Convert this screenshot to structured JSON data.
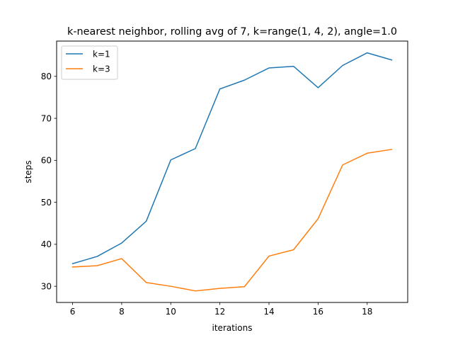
{
  "chart_data": {
    "type": "line",
    "title": "k-nearest neighbor, rolling avg of 7, k=range(1, 4, 2), angle=1.0",
    "xlabel": "iterations",
    "ylabel": "steps",
    "xlim": [
      5.35,
      19.65
    ],
    "ylim": [
      26.15,
      88.4
    ],
    "xticks": [
      6,
      8,
      10,
      12,
      14,
      16,
      18
    ],
    "yticks": [
      30,
      40,
      50,
      60,
      70,
      80
    ],
    "grid": false,
    "legend_position": "upper-left",
    "x": [
      6,
      7,
      8,
      9,
      10,
      11,
      12,
      13,
      14,
      15,
      16,
      17,
      18,
      19
    ],
    "series": [
      {
        "name": "k=1",
        "color": "#1f77b4",
        "values": [
          35.4,
          37.1,
          40.3,
          45.5,
          60.1,
          62.8,
          77.0,
          79.1,
          82.0,
          82.4,
          77.3,
          82.6,
          85.6,
          83.9
        ]
      },
      {
        "name": "k=3",
        "color": "#ff7f0e",
        "values": [
          34.6,
          34.9,
          36.6,
          30.9,
          30.0,
          28.9,
          29.5,
          29.9,
          37.2,
          38.7,
          46.1,
          58.9,
          61.7,
          62.6
        ]
      }
    ]
  }
}
